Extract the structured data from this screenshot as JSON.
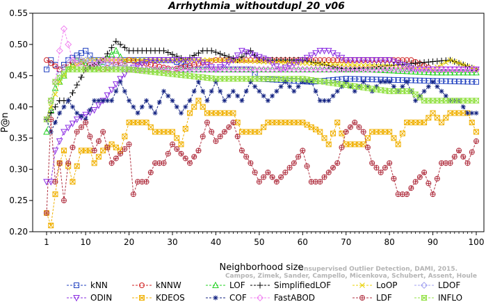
{
  "chart_data": {
    "type": "line",
    "title": "Arrhythmia_withoutdupl_20_v06",
    "xlabel": "Neighborhood size",
    "ylabel": "P@n",
    "xlim": [
      0,
      100
    ],
    "ylim": [
      0.2,
      0.55
    ],
    "x_ticks": [
      1,
      10,
      20,
      30,
      40,
      50,
      60,
      70,
      80,
      90,
      100
    ],
    "y_ticks": [
      0.2,
      0.25,
      0.3,
      0.35,
      0.4,
      0.45,
      0.5,
      0.55
    ],
    "grid": false,
    "legend_position": "bottom",
    "watermark": [
      "Campos, Zimek, Sander, Campello, Micenkova, Schubert, Assent, Houle",
      "Unsupervised Outlier Detection, DAMI, 2015."
    ],
    "series": [
      {
        "name": "kNN",
        "color": "#1f3fbf",
        "marker": "square",
        "anchors": [
          [
            1,
            0.46
          ],
          [
            2,
            0.475
          ],
          [
            4,
            0.46
          ],
          [
            6,
            0.475
          ],
          [
            10,
            0.49
          ],
          [
            12,
            0.475
          ],
          [
            30,
            0.475
          ],
          [
            35,
            0.46
          ],
          [
            48,
            0.46
          ],
          [
            50,
            0.445
          ],
          [
            62,
            0.44
          ],
          [
            70,
            0.445
          ],
          [
            100,
            0.44
          ]
        ]
      },
      {
        "name": "kNNW",
        "color": "#d02020",
        "marker": "circle",
        "anchors": [
          [
            1,
            0.475
          ],
          [
            4,
            0.46
          ],
          [
            8,
            0.475
          ],
          [
            14,
            0.46
          ],
          [
            20,
            0.475
          ],
          [
            30,
            0.46
          ],
          [
            40,
            0.475
          ],
          [
            60,
            0.475
          ],
          [
            70,
            0.475
          ],
          [
            85,
            0.475
          ],
          [
            90,
            0.46
          ],
          [
            100,
            0.46
          ]
        ]
      },
      {
        "name": "LOF",
        "color": "#20d020",
        "marker": "triangle-up",
        "anchors": [
          [
            1,
            0.36
          ],
          [
            3,
            0.43
          ],
          [
            6,
            0.46
          ],
          [
            8,
            0.475
          ],
          [
            12,
            0.46
          ],
          [
            17,
            0.49
          ],
          [
            20,
            0.46
          ],
          [
            25,
            0.46
          ],
          [
            30,
            0.46
          ],
          [
            40,
            0.46
          ],
          [
            60,
            0.46
          ],
          [
            75,
            0.46
          ],
          [
            90,
            0.455
          ],
          [
            100,
            0.455
          ]
        ]
      },
      {
        "name": "SimplifiedLOF",
        "color": "#000000",
        "marker": "plus",
        "anchors": [
          [
            1,
            0.38
          ],
          [
            4,
            0.41
          ],
          [
            6,
            0.41
          ],
          [
            10,
            0.46
          ],
          [
            14,
            0.475
          ],
          [
            17,
            0.505
          ],
          [
            20,
            0.49
          ],
          [
            23,
            0.49
          ],
          [
            28,
            0.49
          ],
          [
            33,
            0.475
          ],
          [
            37,
            0.49
          ],
          [
            39,
            0.49
          ],
          [
            45,
            0.475
          ],
          [
            48,
            0.49
          ],
          [
            50,
            0.475
          ],
          [
            60,
            0.475
          ],
          [
            70,
            0.46
          ],
          [
            94,
            0.475
          ],
          [
            100,
            0.46
          ]
        ]
      },
      {
        "name": "LoOP",
        "color": "#e8d000",
        "marker": "x",
        "anchors": [
          [
            1,
            0.38
          ],
          [
            4,
            0.44
          ],
          [
            6,
            0.46
          ],
          [
            10,
            0.475
          ],
          [
            20,
            0.475
          ],
          [
            40,
            0.475
          ],
          [
            60,
            0.47
          ],
          [
            80,
            0.465
          ],
          [
            90,
            0.46
          ],
          [
            94,
            0.475
          ],
          [
            100,
            0.46
          ]
        ]
      },
      {
        "name": "LDOF",
        "color": "#a0a0f0",
        "marker": "diamond",
        "anchors": [
          [
            1,
            0.38
          ],
          [
            3,
            0.44
          ],
          [
            6,
            0.475
          ],
          [
            10,
            0.475
          ],
          [
            20,
            0.46
          ],
          [
            40,
            0.46
          ],
          [
            60,
            0.46
          ],
          [
            100,
            0.46
          ]
        ]
      },
      {
        "name": "ODIN",
        "color": "#8a2be2",
        "marker": "triangle-down",
        "anchors": [
          [
            1,
            0.28
          ],
          [
            2,
            0.28
          ],
          [
            3,
            0.33
          ],
          [
            5,
            0.36
          ],
          [
            8,
            0.38
          ],
          [
            12,
            0.395
          ],
          [
            14,
            0.41
          ],
          [
            18,
            0.445
          ],
          [
            20,
            0.46
          ],
          [
            25,
            0.475
          ],
          [
            34,
            0.475
          ],
          [
            36,
            0.475
          ],
          [
            40,
            0.46
          ],
          [
            44,
            0.475
          ],
          [
            46,
            0.49
          ],
          [
            52,
            0.475
          ],
          [
            55,
            0.46
          ],
          [
            60,
            0.475
          ],
          [
            64,
            0.49
          ],
          [
            66,
            0.49
          ],
          [
            70,
            0.475
          ],
          [
            80,
            0.475
          ],
          [
            86,
            0.46
          ],
          [
            100,
            0.46
          ]
        ]
      },
      {
        "name": "KDEOS",
        "color": "#f0b000",
        "marker": "square-x",
        "anchors": [
          [
            1,
            0.23
          ],
          [
            2,
            0.21
          ],
          [
            3,
            0.26
          ],
          [
            4,
            0.31
          ],
          [
            5,
            0.33
          ],
          [
            7,
            0.28
          ],
          [
            9,
            0.33
          ],
          [
            11,
            0.33
          ],
          [
            12,
            0.31
          ],
          [
            14,
            0.33
          ],
          [
            16,
            0.34
          ],
          [
            18,
            0.33
          ],
          [
            20,
            0.375
          ],
          [
            24,
            0.375
          ],
          [
            26,
            0.36
          ],
          [
            30,
            0.36
          ],
          [
            32,
            0.34
          ],
          [
            34,
            0.39
          ],
          [
            36,
            0.41
          ],
          [
            38,
            0.39
          ],
          [
            44,
            0.39
          ],
          [
            46,
            0.36
          ],
          [
            50,
            0.36
          ],
          [
            52,
            0.375
          ],
          [
            56,
            0.375
          ],
          [
            60,
            0.375
          ],
          [
            64,
            0.36
          ],
          [
            66,
            0.34
          ],
          [
            68,
            0.375
          ],
          [
            70,
            0.34
          ],
          [
            74,
            0.34
          ],
          [
            76,
            0.36
          ],
          [
            80,
            0.36
          ],
          [
            82,
            0.34
          ],
          [
            84,
            0.375
          ],
          [
            88,
            0.375
          ],
          [
            90,
            0.39
          ],
          [
            92,
            0.375
          ],
          [
            94,
            0.39
          ],
          [
            98,
            0.39
          ],
          [
            100,
            0.36
          ]
        ]
      },
      {
        "name": "COF",
        "color": "#102080",
        "marker": "asterisk",
        "anchors": [
          [
            1,
            0.38
          ],
          [
            2,
            0.36
          ],
          [
            4,
            0.39
          ],
          [
            6,
            0.41
          ],
          [
            8,
            0.39
          ],
          [
            10,
            0.38
          ],
          [
            12,
            0.41
          ],
          [
            16,
            0.41
          ],
          [
            18,
            0.44
          ],
          [
            20,
            0.41
          ],
          [
            22,
            0.39
          ],
          [
            24,
            0.41
          ],
          [
            26,
            0.39
          ],
          [
            28,
            0.425
          ],
          [
            30,
            0.41
          ],
          [
            32,
            0.39
          ],
          [
            34,
            0.41
          ],
          [
            36,
            0.44
          ],
          [
            38,
            0.41
          ],
          [
            40,
            0.44
          ],
          [
            42,
            0.41
          ],
          [
            44,
            0.425
          ],
          [
            46,
            0.41
          ],
          [
            48,
            0.44
          ],
          [
            50,
            0.425
          ],
          [
            52,
            0.41
          ],
          [
            54,
            0.425
          ],
          [
            56,
            0.44
          ],
          [
            58,
            0.425
          ],
          [
            60,
            0.44
          ],
          [
            62,
            0.44
          ],
          [
            64,
            0.41
          ],
          [
            66,
            0.41
          ],
          [
            70,
            0.44
          ],
          [
            72,
            0.425
          ],
          [
            74,
            0.44
          ],
          [
            76,
            0.425
          ],
          [
            78,
            0.44
          ],
          [
            80,
            0.44
          ],
          [
            82,
            0.425
          ],
          [
            84,
            0.44
          ],
          [
            86,
            0.41
          ],
          [
            88,
            0.425
          ],
          [
            90,
            0.44
          ],
          [
            92,
            0.425
          ],
          [
            94,
            0.41
          ],
          [
            96,
            0.41
          ],
          [
            98,
            0.39
          ],
          [
            100,
            0.39
          ]
        ]
      },
      {
        "name": "FastABOD",
        "color": "#f080f0",
        "marker": "diamond",
        "anchors": [
          [
            1,
            0.38
          ],
          [
            3,
            0.44
          ],
          [
            4,
            0.49
          ],
          [
            5,
            0.525
          ],
          [
            7,
            0.475
          ],
          [
            10,
            0.46
          ],
          [
            14,
            0.475
          ],
          [
            18,
            0.475
          ],
          [
            20,
            0.46
          ],
          [
            40,
            0.46
          ],
          [
            100,
            0.46
          ]
        ]
      },
      {
        "name": "LDF",
        "color": "#b03040",
        "marker": "circle-plus",
        "anchors": [
          [
            1,
            0.23
          ],
          [
            2,
            0.38
          ],
          [
            3,
            0.28
          ],
          [
            4,
            0.31
          ],
          [
            5,
            0.25
          ],
          [
            6,
            0.31
          ],
          [
            8,
            0.36
          ],
          [
            10,
            0.375
          ],
          [
            12,
            0.33
          ],
          [
            14,
            0.36
          ],
          [
            16,
            0.31
          ],
          [
            18,
            0.325
          ],
          [
            20,
            0.34
          ],
          [
            21,
            0.26
          ],
          [
            22,
            0.28
          ],
          [
            24,
            0.28
          ],
          [
            26,
            0.31
          ],
          [
            28,
            0.31
          ],
          [
            30,
            0.34
          ],
          [
            32,
            0.325
          ],
          [
            34,
            0.31
          ],
          [
            36,
            0.33
          ],
          [
            38,
            0.375
          ],
          [
            40,
            0.345
          ],
          [
            42,
            0.36
          ],
          [
            44,
            0.375
          ],
          [
            46,
            0.33
          ],
          [
            48,
            0.31
          ],
          [
            50,
            0.28
          ],
          [
            52,
            0.295
          ],
          [
            54,
            0.28
          ],
          [
            56,
            0.295
          ],
          [
            58,
            0.31
          ],
          [
            60,
            0.33
          ],
          [
            62,
            0.28
          ],
          [
            64,
            0.28
          ],
          [
            66,
            0.295
          ],
          [
            68,
            0.31
          ],
          [
            70,
            0.36
          ],
          [
            72,
            0.375
          ],
          [
            74,
            0.36
          ],
          [
            76,
            0.31
          ],
          [
            78,
            0.295
          ],
          [
            80,
            0.31
          ],
          [
            82,
            0.26
          ],
          [
            84,
            0.26
          ],
          [
            86,
            0.28
          ],
          [
            88,
            0.295
          ],
          [
            90,
            0.26
          ],
          [
            92,
            0.31
          ],
          [
            94,
            0.31
          ],
          [
            96,
            0.33
          ],
          [
            98,
            0.31
          ],
          [
            100,
            0.345
          ]
        ]
      },
      {
        "name": "INFLO",
        "color": "#90e040",
        "marker": "hourglass",
        "anchors": [
          [
            1,
            0.38
          ],
          [
            3,
            0.44
          ],
          [
            6,
            0.46
          ],
          [
            10,
            0.46
          ],
          [
            20,
            0.46
          ],
          [
            40,
            0.445
          ],
          [
            60,
            0.445
          ],
          [
            80,
            0.425
          ],
          [
            85,
            0.425
          ],
          [
            88,
            0.41
          ],
          [
            90,
            0.41
          ],
          [
            100,
            0.41
          ]
        ]
      }
    ]
  }
}
